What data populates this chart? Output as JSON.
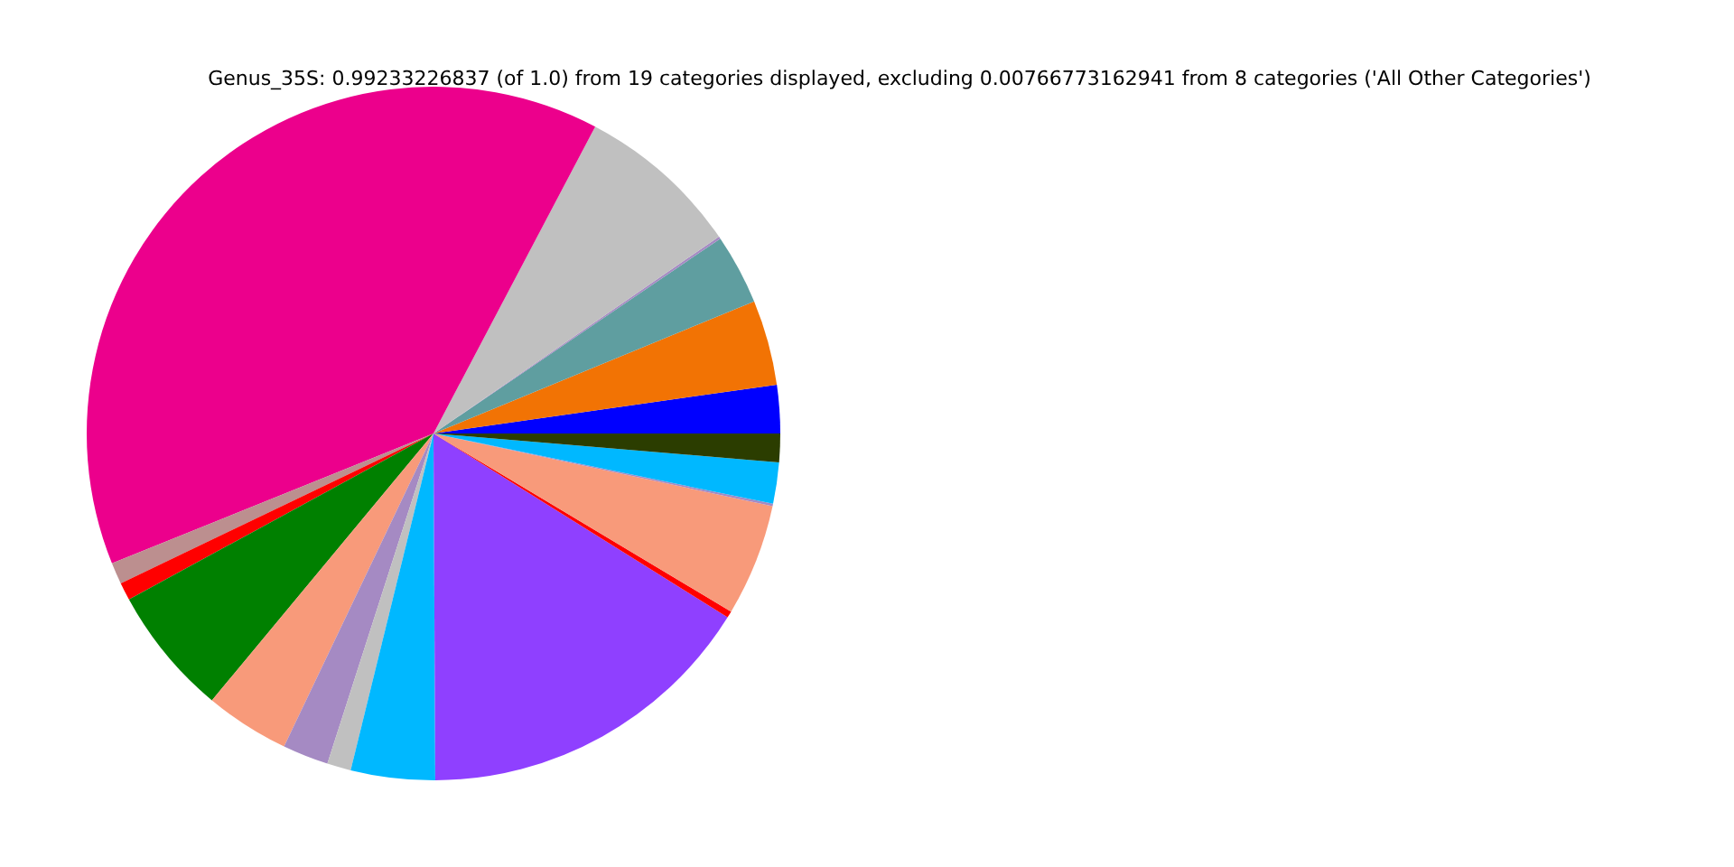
{
  "chart_data": {
    "type": "pie",
    "title": "Genus_35S: 0.99233226837 (of 1.0) from 19 categories displayed, excluding 0.00766773162941 from 8 categories ('All Other Categories')",
    "categories": [
      null,
      null,
      null,
      null,
      null,
      null,
      null,
      null,
      null,
      null,
      null,
      null,
      null,
      null,
      null,
      null,
      null,
      null,
      null
    ],
    "values": [
      2.25,
      3.97,
      3.28,
      0.11,
      7.67,
      38.83,
      1.0,
      0.83,
      6.03,
      3.94,
      2.14,
      1.11,
      3.92,
      16.03,
      0.31,
      5.22,
      0.11,
      1.92,
      1.33
    ],
    "colors": [
      "#0000ff",
      "#f27304",
      "#5f9ea0",
      "#a58ac3",
      "#c0c0c0",
      "#ec008c",
      "#bc8f8f",
      "#ff0000",
      "#008000",
      "#f89a7a",
      "#a58ac3",
      "#c0c0c0",
      "#00b8ff",
      "#8f40ff",
      "#ff0000",
      "#f89a7a",
      "#a58ac3",
      "#00b8ff",
      "#2b3d00"
    ]
  }
}
